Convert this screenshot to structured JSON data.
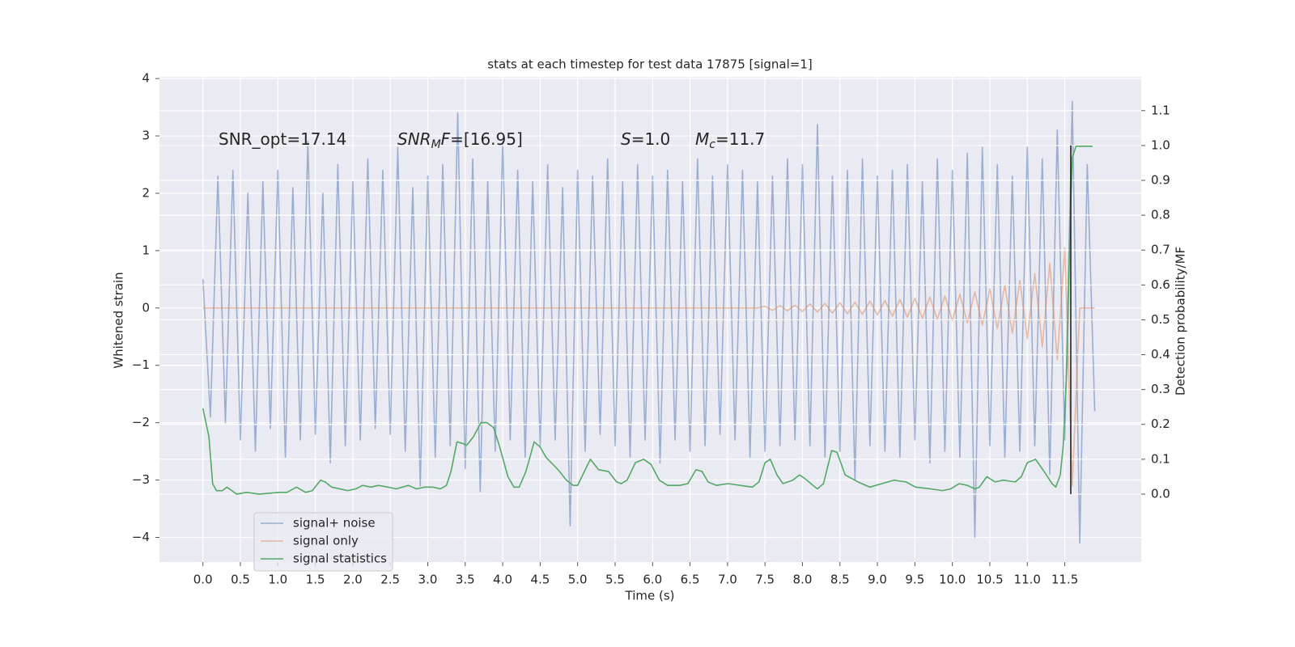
{
  "chart_data": {
    "type": "line",
    "title": "stats at each timestep for test data 17875 [signal=1]",
    "x_label": "Time (s)",
    "y_label": "Whitened strain",
    "y2_label": "Detection probability/MF",
    "xlim": [
      -0.58,
      12.52
    ],
    "ylim": [
      -4.43,
      4.03
    ],
    "y2lim": [
      -0.195,
      1.197
    ],
    "xticks": [
      {
        "value": 0,
        "label": "0.0"
      },
      0.5,
      {
        "value": 1,
        "label": "1.0"
      },
      1.5,
      {
        "value": 2,
        "label": "2.0"
      },
      2.5,
      {
        "value": 3,
        "label": "3.0"
      },
      3.5,
      {
        "value": 4,
        "label": "4.0"
      },
      4.5,
      {
        "value": 5,
        "label": "5.0"
      },
      5.5,
      {
        "value": 6,
        "label": "6.0"
      },
      6.5,
      {
        "value": 7,
        "label": "7.0"
      },
      7.5,
      {
        "value": 8,
        "label": "8.0"
      },
      8.5,
      {
        "value": 9,
        "label": "9.0"
      },
      9.5,
      {
        "value": 10,
        "label": "10.0"
      },
      10.5,
      {
        "value": 11,
        "label": "11.0"
      },
      11.5
    ],
    "yticks": [
      {
        "value": -4,
        "label": "−4"
      },
      {
        "value": -3,
        "label": "−3"
      },
      {
        "value": -2,
        "label": "−2"
      },
      {
        "value": -1,
        "label": "−1"
      },
      0,
      1,
      2,
      3,
      4
    ],
    "y2ticks": [
      {
        "value": 0,
        "label": "0.0"
      },
      0.1,
      0.2,
      0.3,
      0.4,
      0.5,
      0.6,
      0.7,
      0.8,
      0.9,
      {
        "value": 1,
        "label": "1.0"
      },
      1.1
    ],
    "grid": true,
    "background": "#eaeaf2",
    "legend_position": "lower left",
    "x": [
      0,
      0.1,
      0.2,
      0.3,
      0.4,
      0.5,
      0.6,
      0.7,
      0.8,
      0.9,
      1,
      1.1,
      1.2,
      1.3,
      1.4,
      1.5,
      1.6,
      1.7,
      1.8,
      1.9,
      2,
      2.1,
      2.2,
      2.3,
      2.4,
      2.5,
      2.6,
      2.7,
      2.8,
      2.9,
      3,
      3.1,
      3.2,
      3.3,
      3.4,
      3.5,
      3.6,
      3.7,
      3.8,
      3.9,
      4,
      4.1,
      4.2,
      4.3,
      4.4,
      4.5,
      4.6,
      4.7,
      4.8,
      4.9,
      5,
      5.1,
      5.2,
      5.3,
      5.4,
      5.5,
      5.6,
      5.7,
      5.8,
      5.9,
      6,
      6.1,
      6.2,
      6.3,
      6.4,
      6.5,
      6.6,
      6.7,
      6.8,
      6.9,
      7,
      7.1,
      7.2,
      7.3,
      7.4,
      7.5,
      7.6,
      7.7,
      7.8,
      7.9,
      8,
      8.1,
      8.2,
      8.3,
      8.4,
      8.5,
      8.6,
      8.7,
      8.8,
      8.9,
      9,
      9.1,
      9.2,
      9.3,
      9.4,
      9.5,
      9.6,
      9.7,
      9.8,
      9.9,
      10,
      10.1,
      10.2,
      10.3,
      10.4,
      10.5,
      10.6,
      10.7,
      10.8,
      10.9,
      11,
      11.1,
      11.2,
      11.3,
      11.4,
      11.5,
      11.6,
      11.7,
      11.8,
      11.9
    ],
    "series": [
      {
        "name": "signal+ noise",
        "color": "#4c72b0",
        "opacity": 0.5,
        "axis": "y",
        "values": [
          0.5,
          -1.9,
          2.3,
          -2.0,
          2.4,
          -2.3,
          2.0,
          -2.5,
          2.2,
          -2.1,
          2.4,
          -2.6,
          2.1,
          -2.3,
          2.9,
          -2.2,
          2.0,
          -2.7,
          2.5,
          -2.4,
          2.2,
          -2.3,
          2.6,
          -2.1,
          2.4,
          -2.2,
          2.8,
          -2.5,
          2.1,
          -3.1,
          2.3,
          -2.6,
          2.5,
          -2.4,
          3.4,
          -2.8,
          2.6,
          -3.2,
          2.2,
          -2.5,
          2.9,
          -2.3,
          2.4,
          -2.6,
          2.2,
          -2.4,
          2.5,
          -2.3,
          2.1,
          -3.8,
          2.4,
          -2.5,
          2.3,
          -2.2,
          2.6,
          -2.4,
          2.2,
          -2.6,
          2.5,
          -2.3,
          2.3,
          -2.7,
          2.4,
          -2.3,
          2.2,
          -2.5,
          2.6,
          -2.4,
          2.3,
          -2.2,
          2.5,
          -2.3,
          2.4,
          -2.6,
          2.2,
          -2.5,
          2.3,
          -2.4,
          2.6,
          -2.3,
          2.5,
          -2.4,
          3.2,
          -2.6,
          2.3,
          -2.5,
          2.4,
          -3.0,
          2.6,
          -2.4,
          2.3,
          -2.5,
          2.4,
          -2.6,
          2.5,
          -2.3,
          2.2,
          -2.7,
          2.6,
          -2.5,
          2.4,
          -2.6,
          2.7,
          -4.0,
          2.8,
          -2.4,
          2.5,
          -2.6,
          2.3,
          -2.5,
          2.8,
          -2.4,
          2.6,
          -2.9,
          3.1,
          -2.3,
          3.6,
          -4.1,
          2.5,
          -1.8
        ]
      },
      {
        "name": "signal only",
        "color": "#dd8452",
        "opacity": 0.5,
        "axis": "y",
        "values": [
          0,
          0,
          0,
          0,
          0,
          0,
          0,
          0,
          0,
          0,
          0,
          0,
          0,
          0,
          0,
          0,
          0,
          0,
          0,
          0,
          0,
          0,
          0,
          0,
          0,
          0,
          0,
          0,
          0,
          0,
          0,
          0,
          0,
          0,
          0,
          0,
          0,
          0,
          0,
          0,
          0,
          0,
          0,
          0,
          0,
          0,
          0,
          0,
          0,
          0,
          0,
          0,
          0,
          0,
          0,
          0,
          0,
          0,
          0,
          0,
          0,
          0,
          0,
          0,
          0,
          0,
          0,
          0,
          0,
          0,
          0,
          0,
          0,
          0,
          0,
          0.03,
          -0.04,
          0.04,
          -0.05,
          0.05,
          -0.06,
          0.07,
          -0.07,
          0.08,
          -0.09,
          0.09,
          -0.1,
          0.1,
          -0.11,
          0.12,
          -0.12,
          0.13,
          -0.14,
          0.15,
          -0.16,
          0.17,
          -0.18,
          0.19,
          -0.2,
          0.21,
          -0.22,
          0.24,
          -0.26,
          0.28,
          -0.3,
          0.33,
          -0.36,
          0.4,
          -0.44,
          0.48,
          -0.53,
          0.6,
          -0.68,
          0.78,
          -0.9,
          1.05,
          -3.1,
          0,
          0,
          0
        ]
      },
      {
        "name": "signal statistics",
        "color": "#55a868",
        "opacity": 1,
        "axis": "y2",
        "x": [
          0,
          0.08,
          0.13,
          0.18,
          0.26,
          0.32,
          0.45,
          0.58,
          0.75,
          1.02,
          1.12,
          1.25,
          1.37,
          1.46,
          1.57,
          1.63,
          1.72,
          1.93,
          2.04,
          2.13,
          2.24,
          2.34,
          2.47,
          2.58,
          2.74,
          2.85,
          2.96,
          3.07,
          3.17,
          3.25,
          3.31,
          3.39,
          3.47,
          3.52,
          3.61,
          3.71,
          3.79,
          3.88,
          3.96,
          4.07,
          4.15,
          4.22,
          4.31,
          4.42,
          4.5,
          4.58,
          4.74,
          4.85,
          4.94,
          5.0,
          5.09,
          5.17,
          5.28,
          5.41,
          5.52,
          5.58,
          5.66,
          5.77,
          5.88,
          5.98,
          6.09,
          6.2,
          6.36,
          6.47,
          6.58,
          6.66,
          6.74,
          6.85,
          7.01,
          7.17,
          7.33,
          7.42,
          7.5,
          7.57,
          7.66,
          7.74,
          7.87,
          7.96,
          8.03,
          8.14,
          8.2,
          8.28,
          8.39,
          8.46,
          8.57,
          8.74,
          8.9,
          9.06,
          9.22,
          9.38,
          9.51,
          9.71,
          9.87,
          9.98,
          10.09,
          10.2,
          10.3,
          10.36,
          10.46,
          10.57,
          10.68,
          10.84,
          10.92,
          11.0,
          11.11,
          11.24,
          11.33,
          11.38,
          11.44,
          11.48,
          11.53,
          11.57,
          11.6,
          11.65,
          11.76,
          11.87
        ],
        "values": [
          0.246,
          0.165,
          0.03,
          0.01,
          0.01,
          0.02,
          0,
          0.005,
          0,
          0.005,
          0.005,
          0.02,
          0.005,
          0.01,
          0.04,
          0.035,
          0.02,
          0.01,
          0.015,
          0.025,
          0.02,
          0.025,
          0.02,
          0.015,
          0.025,
          0.015,
          0.02,
          0.02,
          0.015,
          0.025,
          0.065,
          0.15,
          0.145,
          0.14,
          0.165,
          0.205,
          0.205,
          0.19,
          0.135,
          0.05,
          0.02,
          0.02,
          0.065,
          0.15,
          0.135,
          0.105,
          0.07,
          0.04,
          0.025,
          0.025,
          0.065,
          0.1,
          0.07,
          0.065,
          0.035,
          0.03,
          0.04,
          0.09,
          0.1,
          0.085,
          0.04,
          0.025,
          0.025,
          0.03,
          0.07,
          0.065,
          0.035,
          0.025,
          0.03,
          0.025,
          0.02,
          0.035,
          0.09,
          0.1,
          0.055,
          0.03,
          0.04,
          0.055,
          0.045,
          0.025,
          0.015,
          0.03,
          0.125,
          0.12,
          0.055,
          0.035,
          0.02,
          0.03,
          0.04,
          0.035,
          0.02,
          0.015,
          0.01,
          0.015,
          0.03,
          0.025,
          0.015,
          0.02,
          0.05,
          0.035,
          0.04,
          0.035,
          0.05,
          0.09,
          0.1,
          0.06,
          0.03,
          0.02,
          0.055,
          0.14,
          0.375,
          0.77,
          0.965,
          0.998,
          0.998,
          0.998
        ]
      }
    ],
    "vline": {
      "x": 11.58,
      "ymin": 0,
      "ymax": 1,
      "axis": "y2",
      "color": "#262626"
    },
    "annotations": [
      {
        "parts": [
          {
            "text": "SNR_opt=17.14",
            "style": "normal"
          }
        ]
      },
      {
        "parts": [
          {
            "text": "SNR",
            "style": "italic"
          },
          {
            "text": "M",
            "style": "italic-sub"
          },
          {
            "text": "F",
            "style": "italic"
          },
          {
            "text": "=[16.95]",
            "style": "normal"
          }
        ]
      },
      {
        "parts": [
          {
            "text": "S",
            "style": "italic"
          },
          {
            "text": "=1.0",
            "style": "normal"
          }
        ]
      },
      {
        "parts": [
          {
            "text": "M",
            "style": "italic"
          },
          {
            "text": "c",
            "style": "italic-sub"
          },
          {
            "text": "=11.7",
            "style": "normal"
          }
        ]
      }
    ]
  }
}
